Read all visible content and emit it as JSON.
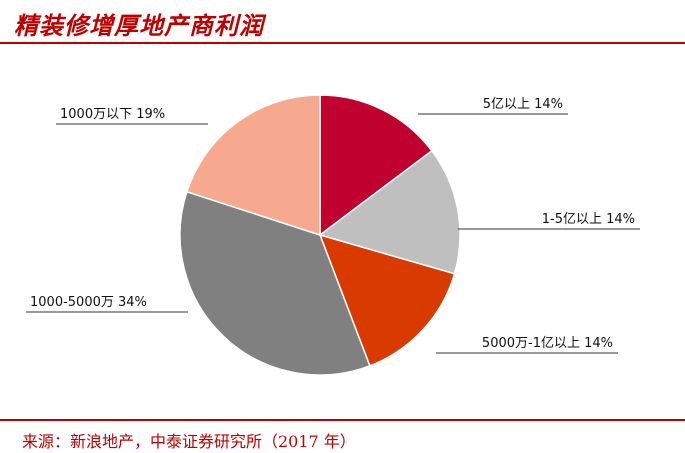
{
  "title": "精装修增厚地产商利润",
  "source": "来源：新浪地产，中泰证券研究所（2017 年）",
  "colors": {
    "accent": "#c00000",
    "slices": [
      "#c0002e",
      "#bfbfbf",
      "#d93a00",
      "#808080",
      "#f7a990"
    ]
  },
  "chart_data": {
    "type": "pie",
    "title": "",
    "slices": [
      {
        "label": "5亿以上",
        "percent": 14,
        "value_label": "14%",
        "color": "#c0002e"
      },
      {
        "label": "1-5亿以上",
        "percent": 14,
        "value_label": "14%",
        "color": "#bfbfbf"
      },
      {
        "label": "5000万-1亿以上",
        "percent": 14,
        "value_label": "14%",
        "color": "#d93a00"
      },
      {
        "label": "1000-5000万",
        "percent": 34,
        "value_label": "34%",
        "color": "#808080"
      },
      {
        "label": "1000万以下",
        "percent": 19,
        "value_label": "19%",
        "color": "#f7a990"
      }
    ]
  }
}
